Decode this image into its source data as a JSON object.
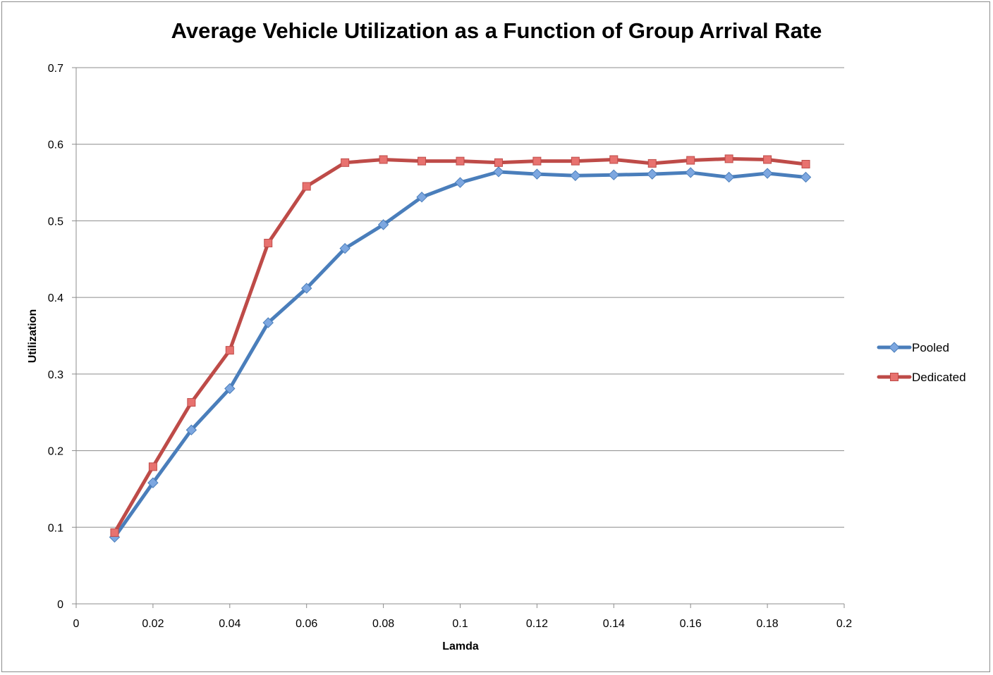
{
  "chart_data": {
    "type": "line",
    "title": "Average Vehicle Utilization as a Function of Group Arrival Rate",
    "xlabel": "Lamda",
    "ylabel": "Utilization",
    "xlim": [
      0,
      0.2
    ],
    "ylim": [
      0,
      0.7
    ],
    "x_ticks": [
      "0",
      "0.02",
      "0.04",
      "0.06",
      "0.08",
      "0.1",
      "0.12",
      "0.14",
      "0.16",
      "0.18",
      "0.2"
    ],
    "y_ticks": [
      "0",
      "0.1",
      "0.2",
      "0.3",
      "0.4",
      "0.5",
      "0.6",
      "0.7"
    ],
    "grid": "horizontal",
    "legend_position": "right",
    "x": [
      0.01,
      0.02,
      0.03,
      0.04,
      0.05,
      0.06,
      0.07,
      0.08,
      0.09,
      0.1,
      0.11,
      0.12,
      0.13,
      0.14,
      0.15,
      0.16,
      0.17,
      0.18,
      0.19
    ],
    "series": [
      {
        "name": "Pooled",
        "color": "#4a7ebb",
        "marker_color": "#7da7e0",
        "marker": "diamond",
        "values": [
          0.087,
          0.158,
          0.227,
          0.281,
          0.367,
          0.412,
          0.464,
          0.495,
          0.531,
          0.55,
          0.564,
          0.561,
          0.559,
          0.56,
          0.561,
          0.563,
          0.557,
          0.562,
          0.557
        ]
      },
      {
        "name": "Dedicated",
        "color": "#be4b48",
        "marker_color": "#e8726f",
        "marker": "square",
        "values": [
          0.093,
          0.179,
          0.263,
          0.331,
          0.471,
          0.545,
          0.576,
          0.58,
          0.578,
          0.578,
          0.576,
          0.578,
          0.578,
          0.58,
          0.575,
          0.579,
          0.581,
          0.58,
          0.574
        ]
      }
    ]
  }
}
